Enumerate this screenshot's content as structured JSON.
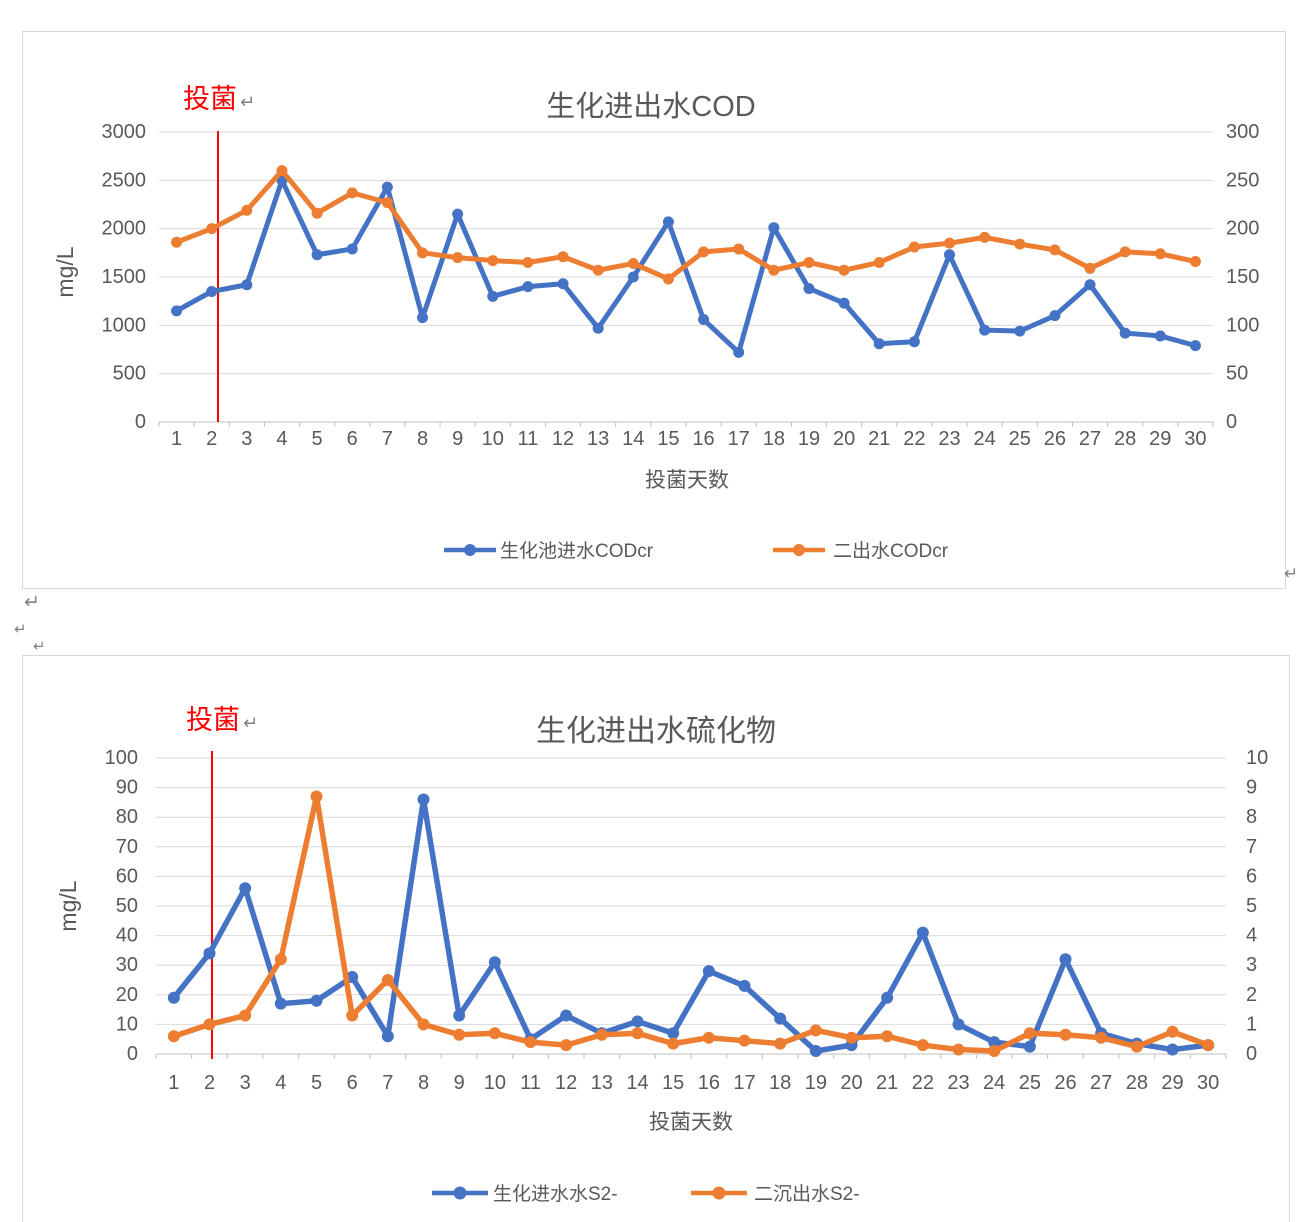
{
  "page": {
    "kind": "word-document-with-embedded-charts"
  },
  "colors": {
    "series_blue": "#4472C4",
    "series_orange": "#ED7D31",
    "annotation_red": "#FF0000",
    "gridline": "#D9D9D9",
    "axis_line": "#BFBFBF",
    "text": "#595959",
    "title": "#595959",
    "mark_gray": "#7F7F7F",
    "box_border": "#D9D9D9"
  },
  "marks": {
    "return_mark": "↵"
  },
  "chart_data": [
    {
      "type": "line",
      "name": "cod-chart",
      "title": "生化进出水COD",
      "annotation": {
        "label": "投菌",
        "line_day": 2
      },
      "x_axis_title": "投菌天数",
      "categories": [
        1,
        2,
        3,
        4,
        5,
        6,
        7,
        8,
        9,
        10,
        11,
        12,
        13,
        14,
        15,
        16,
        17,
        18,
        19,
        20,
        21,
        22,
        23,
        24,
        25,
        26,
        27,
        28,
        29,
        30
      ],
      "y_left": {
        "label": "mg/L",
        "min": 0,
        "max": 3000,
        "step": 500,
        "ticks": [
          0,
          500,
          1000,
          1500,
          2000,
          2500,
          3000
        ]
      },
      "y_right": {
        "label": "",
        "min": 0,
        "max": 300,
        "step": 50,
        "ticks": [
          0,
          50,
          100,
          150,
          200,
          250,
          300
        ]
      },
      "grid": true,
      "legend_position": "bottom",
      "series": [
        {
          "name": "生化池进水CODcr",
          "color": "#4472C4",
          "axis": "left",
          "values": [
            1150,
            1350,
            1420,
            2500,
            1730,
            1790,
            2430,
            1080,
            2150,
            1300,
            1400,
            1430,
            970,
            1500,
            2070,
            1060,
            720,
            2010,
            1380,
            1230,
            810,
            830,
            1730,
            950,
            940,
            1100,
            1420,
            920,
            890,
            790
          ]
        },
        {
          "name": "二出水CODcr",
          "color": "#ED7D31",
          "axis": "left",
          "values": [
            1860,
            2000,
            2190,
            2600,
            2160,
            2370,
            2270,
            1750,
            1700,
            1670,
            1650,
            1710,
            1570,
            1640,
            1480,
            1760,
            1790,
            1570,
            1650,
            1570,
            1650,
            1810,
            1850,
            1910,
            1840,
            1780,
            1590,
            1760,
            1740,
            1660
          ]
        }
      ]
    },
    {
      "type": "line",
      "name": "sulfide-chart",
      "title": "生化进出水硫化物",
      "annotation": {
        "label": "投菌",
        "line_day": 2
      },
      "x_axis_title": "投菌天数",
      "categories": [
        1,
        2,
        3,
        4,
        5,
        6,
        7,
        8,
        9,
        10,
        11,
        12,
        13,
        14,
        15,
        16,
        17,
        18,
        19,
        20,
        21,
        22,
        23,
        24,
        25,
        26,
        27,
        28,
        29,
        30
      ],
      "y_left": {
        "label": "mg/L",
        "min": 0,
        "max": 100,
        "step": 10,
        "ticks": [
          0,
          10,
          20,
          30,
          40,
          50,
          60,
          70,
          80,
          90,
          100
        ]
      },
      "y_right": {
        "label": "",
        "min": 0,
        "max": 10,
        "step": 1,
        "ticks": [
          0,
          1,
          2,
          3,
          4,
          5,
          6,
          7,
          8,
          9,
          10
        ]
      },
      "grid": true,
      "legend_position": "bottom",
      "series": [
        {
          "name": "生化进水水S2-",
          "color": "#4472C4",
          "axis": "left",
          "values": [
            19,
            34,
            56,
            17,
            18,
            26,
            6,
            86,
            13,
            31,
            5,
            13,
            7,
            11,
            7,
            28,
            23,
            12,
            1,
            3,
            19,
            41,
            10,
            4,
            2.5,
            32,
            7,
            3.5,
            1.5,
            3
          ]
        },
        {
          "name": "二沉出水S2-",
          "color": "#ED7D31",
          "axis": "left",
          "values": [
            6,
            10,
            13,
            32,
            87,
            13,
            25,
            10,
            6.5,
            7,
            4,
            3,
            6.5,
            7,
            3.5,
            5.5,
            4.5,
            3.5,
            8,
            5.5,
            6,
            3,
            1.5,
            1,
            7,
            6.5,
            5.5,
            2.5,
            7.5,
            3
          ]
        }
      ]
    }
  ]
}
